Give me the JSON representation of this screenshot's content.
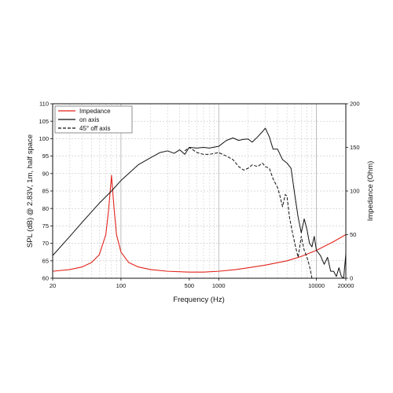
{
  "chart_data": {
    "type": "line",
    "xlabel": "Frequency (Hz)",
    "ylabel": "SPL (dB) @ 2.83V, 1m, half space",
    "y2label": "Impedance (Ohm)",
    "x_scale": "log",
    "xlim": [
      20,
      20000
    ],
    "ylim": [
      60,
      110
    ],
    "y2lim": [
      0,
      200
    ],
    "x_ticks": [
      20,
      100,
      500,
      1000,
      10000,
      20000
    ],
    "x_tick_labels": [
      "20",
      "100",
      "500",
      "1000",
      "10000",
      "20000"
    ],
    "y_ticks": [
      60,
      65,
      70,
      75,
      80,
      85,
      90,
      95,
      100,
      105,
      110
    ],
    "y_tick_labels": [
      "60",
      "65",
      "70",
      "75",
      "80",
      "85",
      "90",
      "95",
      "100",
      "105",
      "110"
    ],
    "y2_ticks": [
      0,
      50,
      100,
      150,
      200
    ],
    "y2_tick_labels": [
      "0",
      "50",
      "100",
      "150",
      "200"
    ],
    "grid": true,
    "legend_position": "top-left",
    "series": [
      {
        "name": "Impedance",
        "axis": "right",
        "color": "#e2231a",
        "style": "solid",
        "x": [
          20,
          30,
          40,
          50,
          60,
          70,
          75,
          80,
          85,
          90,
          100,
          120,
          150,
          200,
          300,
          500,
          700,
          1000,
          1500,
          2000,
          3000,
          5000,
          7000,
          10000,
          15000,
          20000
        ],
        "y": [
          8,
          10,
          13,
          18,
          27,
          50,
          80,
          118,
          80,
          50,
          30,
          18,
          13,
          10,
          8,
          7,
          7,
          8,
          10,
          12,
          15,
          20,
          25,
          32,
          42,
          50
        ]
      },
      {
        "name": "on axis",
        "axis": "left",
        "color": "#111111",
        "style": "solid",
        "x": [
          20,
          30,
          40,
          60,
          80,
          100,
          150,
          200,
          250,
          300,
          350,
          400,
          450,
          500,
          600,
          700,
          800,
          1000,
          1200,
          1400,
          1600,
          1800,
          2000,
          2200,
          2500,
          2800,
          3000,
          3300,
          3600,
          4000,
          4500,
          5000,
          5500,
          6000,
          6500,
          7000,
          7500,
          8000,
          8500,
          9000,
          9500,
          10000,
          11000,
          12000,
          13000,
          14000,
          15000,
          16000,
          17000,
          18000,
          19000,
          20000
        ],
        "y": [
          66.5,
          72,
          76,
          81.5,
          85,
          88,
          92.5,
          94.5,
          96,
          96.5,
          95.8,
          96.8,
          95.5,
          97.5,
          97.3,
          97.5,
          97.3,
          97.8,
          99.5,
          100.2,
          99.5,
          99.8,
          99.9,
          99,
          100.5,
          102,
          103,
          100.5,
          97,
          97,
          94,
          93,
          91.5,
          84,
          77.5,
          73,
          77,
          74,
          70,
          69,
          72,
          68,
          66.5,
          64,
          66,
          62,
          62,
          60.5,
          63,
          60.5,
          60,
          67
        ]
      },
      {
        "name": "45° off axis",
        "axis": "left",
        "color": "#111111",
        "style": "dashed",
        "x": [
          450,
          500,
          600,
          700,
          800,
          1000,
          1200,
          1400,
          1600,
          1800,
          2000,
          2200,
          2500,
          2800,
          3000,
          3300,
          3600,
          4000,
          4200,
          4500,
          4800,
          5000,
          5300,
          5600,
          6000,
          6500,
          7000,
          7500,
          8000,
          8500,
          9000,
          10000,
          11000,
          12000
        ],
        "y": [
          96.5,
          97.5,
          96,
          95.5,
          95.5,
          96,
          95,
          94,
          92,
          91,
          91.5,
          92.5,
          92,
          93,
          92,
          91.5,
          88.5,
          86,
          84,
          80.5,
          84,
          83.5,
          77.5,
          74,
          70,
          66,
          72,
          68,
          66,
          63.5,
          60,
          60,
          60,
          60
        ]
      }
    ]
  }
}
